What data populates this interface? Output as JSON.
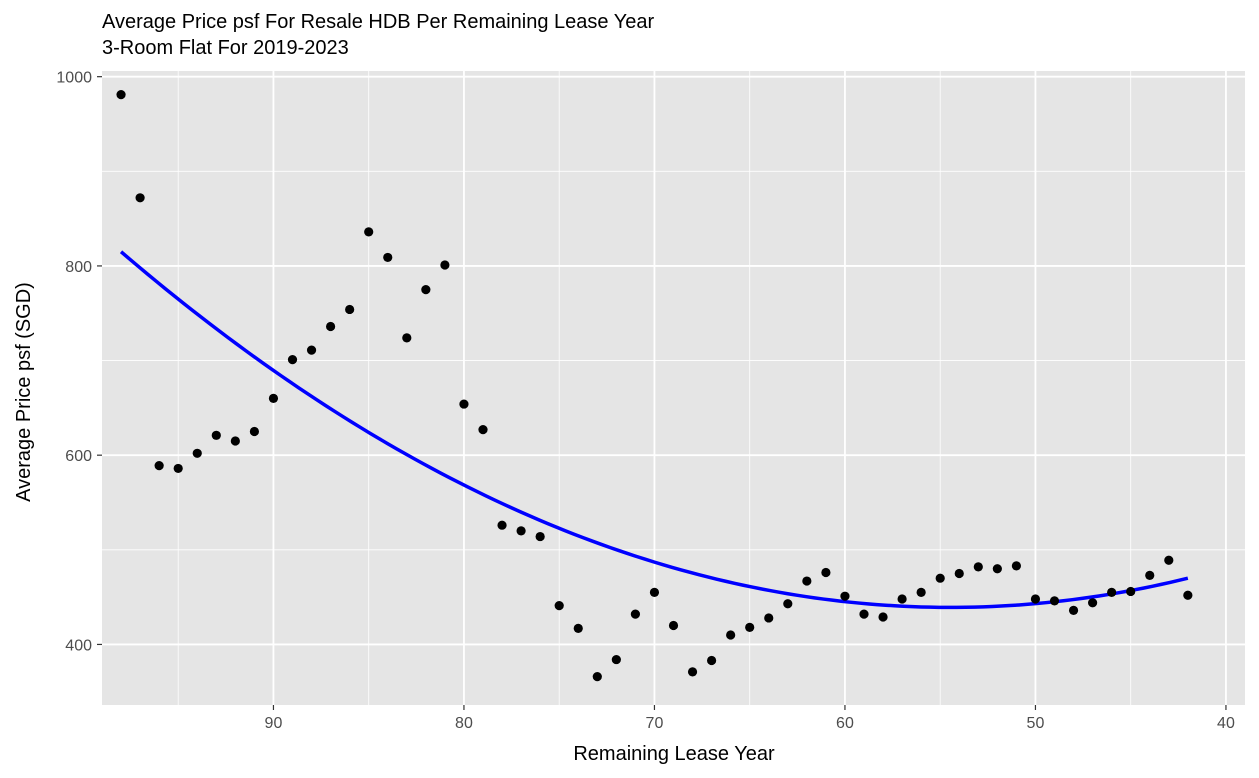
{
  "chart_data": {
    "type": "scatter",
    "title": "Average Price psf For Resale HDB Per Remaining Lease Year",
    "subtitle": "3-Room Flat For 2019-2023",
    "xlabel": "Remaining Lease Year",
    "ylabel": "Average Price psf (SGD)",
    "x_reversed": true,
    "xlim": [
      99,
      39
    ],
    "ylim": [
      336,
      1006
    ],
    "x_ticks": [
      90,
      80,
      70,
      60,
      50,
      40
    ],
    "y_ticks": [
      400,
      600,
      800,
      1000
    ],
    "grid": true,
    "points": [
      {
        "x": 98,
        "y": 981
      },
      {
        "x": 97,
        "y": 872
      },
      {
        "x": 96,
        "y": 589
      },
      {
        "x": 95,
        "y": 586
      },
      {
        "x": 94,
        "y": 602
      },
      {
        "x": 93,
        "y": 621
      },
      {
        "x": 92,
        "y": 615
      },
      {
        "x": 91,
        "y": 625
      },
      {
        "x": 90,
        "y": 660
      },
      {
        "x": 89,
        "y": 701
      },
      {
        "x": 88,
        "y": 711
      },
      {
        "x": 87,
        "y": 736
      },
      {
        "x": 86,
        "y": 754
      },
      {
        "x": 85,
        "y": 836
      },
      {
        "x": 84,
        "y": 809
      },
      {
        "x": 83,
        "y": 724
      },
      {
        "x": 82,
        "y": 775
      },
      {
        "x": 81,
        "y": 801
      },
      {
        "x": 80,
        "y": 654
      },
      {
        "x": 79,
        "y": 627
      },
      {
        "x": 78,
        "y": 526
      },
      {
        "x": 77,
        "y": 520
      },
      {
        "x": 76,
        "y": 514
      },
      {
        "x": 75,
        "y": 441
      },
      {
        "x": 74,
        "y": 417
      },
      {
        "x": 73,
        "y": 366
      },
      {
        "x": 72,
        "y": 384
      },
      {
        "x": 71,
        "y": 432
      },
      {
        "x": 70,
        "y": 455
      },
      {
        "x": 69,
        "y": 420
      },
      {
        "x": 68,
        "y": 371
      },
      {
        "x": 67,
        "y": 383
      },
      {
        "x": 66,
        "y": 410
      },
      {
        "x": 65,
        "y": 418
      },
      {
        "x": 64,
        "y": 428
      },
      {
        "x": 63,
        "y": 443
      },
      {
        "x": 62,
        "y": 467
      },
      {
        "x": 61,
        "y": 476
      },
      {
        "x": 60,
        "y": 451
      },
      {
        "x": 59,
        "y": 432
      },
      {
        "x": 58,
        "y": 429
      },
      {
        "x": 57,
        "y": 448
      },
      {
        "x": 56,
        "y": 455
      },
      {
        "x": 55,
        "y": 470
      },
      {
        "x": 54,
        "y": 475
      },
      {
        "x": 53,
        "y": 482
      },
      {
        "x": 52,
        "y": 480
      },
      {
        "x": 51,
        "y": 483
      },
      {
        "x": 50,
        "y": 448
      },
      {
        "x": 49,
        "y": 446
      },
      {
        "x": 48,
        "y": 436
      },
      {
        "x": 47,
        "y": 444
      },
      {
        "x": 46,
        "y": 455
      },
      {
        "x": 45,
        "y": 456
      },
      {
        "x": 44,
        "y": 473
      },
      {
        "x": 43,
        "y": 489
      },
      {
        "x": 42,
        "y": 452
      }
    ],
    "trend": {
      "type": "quadratic",
      "x_range": [
        98,
        42
      ],
      "points": [
        {
          "x": 98,
          "y": 815
        },
        {
          "x": 70,
          "y": 487
        },
        {
          "x": 42,
          "y": 470
        }
      ]
    },
    "colors": {
      "panel": "#e5e5e5",
      "grid": "#ffffff",
      "point": "#000000",
      "trend": "#0000ff",
      "tick_label": "#4d4d4d"
    }
  }
}
